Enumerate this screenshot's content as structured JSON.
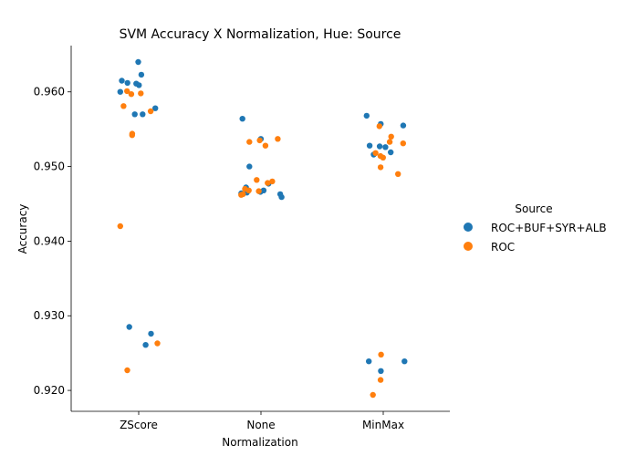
{
  "colors": {
    "roc_buf_syr_alb": "#1f77b4",
    "roc": "#ff7f0e"
  },
  "chart_data": {
    "type": "scatter",
    "title": "SVM Accuracy X Normalization, Hue: Source",
    "xlabel": "Normalization",
    "ylabel": "Accuracy",
    "categories": [
      "ZScore",
      "None",
      "MinMax"
    ],
    "ylim": [
      0.9172,
      0.9662
    ],
    "yticks": [
      "0.920",
      "0.930",
      "0.940",
      "0.950",
      "0.960"
    ],
    "legend": {
      "title": "Source",
      "placement": "right"
    },
    "series": [
      {
        "name": "ROC+BUF+SYR+ALB",
        "color": "#1f77b4",
        "points": [
          {
            "category": "ZScore",
            "values": [
              0.964,
              0.9623,
              0.9615,
              0.9612,
              0.9611,
              0.9609,
              0.96,
              0.9578,
              0.957,
              0.957,
              0.9285,
              0.9276,
              0.9261
            ]
          },
          {
            "category": "None",
            "values": [
              0.9564,
              0.9537,
              0.95,
              0.9477,
              0.9472,
              0.9468,
              0.9466,
              0.9465,
              0.9464,
              0.9463,
              0.9459
            ]
          },
          {
            "category": "MinMax",
            "values": [
              0.9568,
              0.9557,
              0.9555,
              0.9528,
              0.9527,
              0.9526,
              0.9519,
              0.9516,
              0.9239,
              0.9239,
              0.9226
            ]
          }
        ]
      },
      {
        "name": "ROC",
        "color": "#ff7f0e",
        "points": [
          {
            "category": "ZScore",
            "values": [
              0.9601,
              0.9598,
              0.9597,
              0.9581,
              0.9574,
              0.9544,
              0.9542,
              0.942,
              0.9263,
              0.9227
            ]
          },
          {
            "category": "None",
            "values": [
              0.9537,
              0.9535,
              0.9533,
              0.9528,
              0.9482,
              0.948,
              0.9478,
              0.947,
              0.9468,
              0.9467,
              0.9463,
              0.9462
            ]
          },
          {
            "category": "MinMax",
            "values": [
              0.9554,
              0.954,
              0.9533,
              0.9531,
              0.9518,
              0.9514,
              0.9512,
              0.9499,
              0.949,
              0.9248,
              0.9214,
              0.9194
            ]
          }
        ]
      }
    ]
  }
}
